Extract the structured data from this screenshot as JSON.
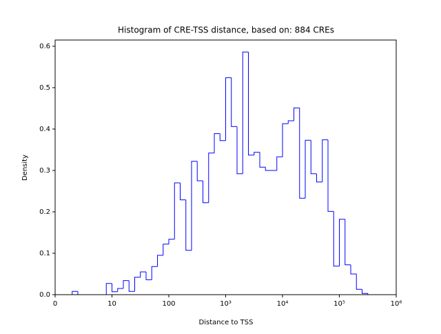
{
  "chart_data": {
    "type": "histogram",
    "title": "Histogram of CRE-TSS distance, based on: 884 CREs",
    "x_label": "Distance to TSS",
    "y_label": "Density",
    "x_scale": "symlog",
    "color": "#0000ff",
    "bins": [
      3,
      4,
      5,
      6,
      7,
      8,
      9,
      10,
      12.59,
      15.85,
      19.95,
      25.12,
      31.62,
      39.81,
      50.12,
      63.1,
      79.43,
      100,
      125.9,
      158.5,
      199.5,
      251.2,
      316.2,
      398.1,
      501.2,
      631,
      794.3,
      1000,
      1259,
      1585,
      1995,
      2512,
      3162,
      3981,
      5012,
      6310,
      7943,
      10000,
      12589,
      15849,
      19953,
      25119,
      31623,
      39811,
      50119,
      63096,
      79433,
      100000,
      125893,
      158489,
      199526,
      251189,
      316228
    ],
    "values": [
      0.008,
      0,
      0,
      0,
      0,
      0,
      0.027,
      0.007,
      0.015,
      0.034,
      0.008,
      0.042,
      0.055,
      0.036,
      0.068,
      0.095,
      0.122,
      0.134,
      0.27,
      0.229,
      0.107,
      0.322,
      0.275,
      0.222,
      0.342,
      0.389,
      0.372,
      0.524,
      0.406,
      0.292,
      0.586,
      0.337,
      0.344,
      0.308,
      0.3,
      0.3,
      0.333,
      0.413,
      0.42,
      0.451,
      0.233,
      0.373,
      0.292,
      0.272,
      0.374,
      0.201,
      0.069,
      0.182,
      0.072,
      0.05,
      0.013,
      0.003
    ],
    "xlim": [
      0,
      1000000
    ],
    "xticks": [
      {
        "value": 0,
        "label": "0"
      },
      10,
      100,
      {
        "value": 1000,
        "label": "10³"
      },
      {
        "value": 10000,
        "label": "10⁴"
      },
      {
        "value": 100000,
        "label": "10⁵"
      },
      {
        "value": 1000000,
        "label": "10⁶"
      }
    ],
    "ylim": [
      0,
      0.615
    ],
    "yticks": [
      {
        "value": 0,
        "label": "0.0"
      },
      0.1,
      0.2,
      0.3,
      0.4,
      0.5,
      0.6
    ]
  }
}
